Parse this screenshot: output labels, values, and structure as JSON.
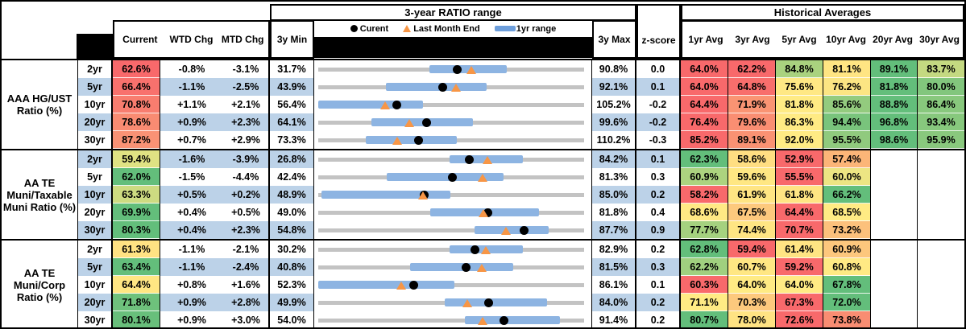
{
  "header": {
    "chart_title": "3-year RATIO range",
    "hist_title": "Historical Averages",
    "col_current": "Current",
    "col_wtd": "WTD Chg",
    "col_mtd": "MTD Chg",
    "col_min": "3y Min",
    "col_max": "3y Max",
    "col_z": "z-score",
    "avg_cols": [
      "1yr Avg",
      "3yr Avg",
      "5yr Avg",
      "10yr Avg",
      "20yr Avg",
      "30yr Avg"
    ],
    "legend": [
      {
        "marker": "dot",
        "label": "Curent"
      },
      {
        "marker": "triangle",
        "label": "Last Month End"
      },
      {
        "marker": "bar",
        "label": "1yr range"
      }
    ]
  },
  "colors": {
    "stripe_blue": "#BCD2E8",
    "bar_blue": "#8DB4E2",
    "legend_bar_blue": "#6D9EDB",
    "track_gray": "#C3C3C3",
    "triangle_orange": "#F79646",
    "dot_black": "#000000",
    "scale_red": "#F8696B",
    "scale_yellow": "#FFEB84",
    "scale_green": "#63BE7B"
  },
  "groups": [
    {
      "label": "AAA HG/UST Ratio (%)",
      "rows": [
        {
          "term": "2yr",
          "current": {
            "v": "62.6%",
            "c": "#F8696B"
          },
          "wtd": "-0.8%",
          "mtd": "-3.1%",
          "min": "31.7%",
          "max": "90.8%",
          "z": "0.0",
          "avgs": [
            {
              "v": "64.0%",
              "c": "#F8696B"
            },
            {
              "v": "62.2%",
              "c": "#F8696B"
            },
            {
              "v": "84.8%",
              "c": "#A9D27F"
            },
            {
              "v": "81.1%",
              "c": "#FFE583"
            },
            {
              "v": "89.1%",
              "c": "#63BE7B"
            },
            {
              "v": "83.7%",
              "c": "#C4D981"
            }
          ],
          "chart": {
            "min": 31.7,
            "max": 90.8,
            "lo": 56.4,
            "hi": 73.6,
            "dot": 62.6,
            "tri": 65.7
          }
        },
        {
          "term": "5yr",
          "current": {
            "v": "66.4%",
            "c": "#F8716D"
          },
          "wtd": "-1.1%",
          "mtd": "-2.5%",
          "min": "43.9%",
          "max": "92.1%",
          "z": "0.1",
          "avgs": [
            {
              "v": "64.0%",
              "c": "#F8696B"
            },
            {
              "v": "64.8%",
              "c": "#F86E6C"
            },
            {
              "v": "75.6%",
              "c": "#FFE884"
            },
            {
              "v": "76.2%",
              "c": "#FCE583"
            },
            {
              "v": "81.8%",
              "c": "#63BE7B"
            },
            {
              "v": "80.0%",
              "c": "#82C67D"
            }
          ],
          "chart": {
            "min": 43.9,
            "max": 92.1,
            "lo": 56.2,
            "hi": 74.4,
            "dot": 66.4,
            "tri": 68.9
          }
        },
        {
          "term": "10yr",
          "current": {
            "v": "70.8%",
            "c": "#F87D6F"
          },
          "wtd": "+1.1%",
          "mtd": "+2.1%",
          "min": "56.4%",
          "max": "105.2%",
          "z": "-0.2",
          "avgs": [
            {
              "v": "64.4%",
              "c": "#F8696B"
            },
            {
              "v": "71.9%",
              "c": "#FA9473"
            },
            {
              "v": "81.8%",
              "c": "#FFEB84"
            },
            {
              "v": "85.6%",
              "c": "#93CB7E"
            },
            {
              "v": "88.8%",
              "c": "#63BE7B"
            },
            {
              "v": "86.4%",
              "c": "#88C87D"
            }
          ],
          "chart": {
            "min": 56.4,
            "max": 105.2,
            "lo": 56.4,
            "hi": 75.6,
            "dot": 70.8,
            "tri": 68.7
          }
        },
        {
          "term": "20yr",
          "current": {
            "v": "78.6%",
            "c": "#F98B72"
          },
          "wtd": "+0.9%",
          "mtd": "+2.3%",
          "min": "64.1%",
          "max": "99.6%",
          "z": "-0.2",
          "avgs": [
            {
              "v": "76.4%",
              "c": "#F8696B"
            },
            {
              "v": "79.6%",
              "c": "#FA8E72"
            },
            {
              "v": "86.3%",
              "c": "#FFEB84"
            },
            {
              "v": "94.4%",
              "c": "#79C47C"
            },
            {
              "v": "96.8%",
              "c": "#63BE7B"
            },
            {
              "v": "93.4%",
              "c": "#87C87D"
            }
          ],
          "chart": {
            "min": 64.1,
            "max": 99.6,
            "lo": 71.2,
            "hi": 84.8,
            "dot": 78.6,
            "tri": 76.3
          }
        },
        {
          "term": "30yr",
          "current": {
            "v": "87.2%",
            "c": "#F99275"
          },
          "wtd": "+0.7%",
          "mtd": "+2.9%",
          "min": "73.3%",
          "max": "110.2%",
          "z": "-0.3",
          "avgs": [
            {
              "v": "85.2%",
              "c": "#F8696B"
            },
            {
              "v": "89.1%",
              "c": "#FA9273"
            },
            {
              "v": "92.0%",
              "c": "#FFEB84"
            },
            {
              "v": "95.5%",
              "c": "#90CA7E"
            },
            {
              "v": "98.6%",
              "c": "#63BE7B"
            },
            {
              "v": "95.9%",
              "c": "#89C87D"
            }
          ],
          "chart": {
            "min": 73.3,
            "max": 110.2,
            "lo": 79.9,
            "hi": 92.5,
            "dot": 87.2,
            "tri": 84.3
          }
        }
      ]
    },
    {
      "label": "AA TE Muni/Taxable Muni Ratio (%)",
      "rows": [
        {
          "term": "2yr",
          "current": {
            "v": "59.4%",
            "c": "#E0E283"
          },
          "wtd": "-1.6%",
          "mtd": "-3.9%",
          "min": "26.8%",
          "max": "84.2%",
          "z": "0.1",
          "avgs": [
            {
              "v": "62.3%",
              "c": "#63BE7B"
            },
            {
              "v": "58.6%",
              "c": "#FFDE82"
            },
            {
              "v": "52.9%",
              "c": "#F8696B"
            },
            {
              "v": "57.4%",
              "c": "#FCB578"
            },
            null,
            null
          ],
          "chart": {
            "min": 26.8,
            "max": 84.2,
            "lo": 55.2,
            "hi": 70.9,
            "dot": 59.4,
            "tri": 63.3
          }
        },
        {
          "term": "5yr",
          "current": {
            "v": "62.0%",
            "c": "#63BE7B"
          },
          "wtd": "-1.5%",
          "mtd": "-4.4%",
          "min": "42.4%",
          "max": "81.3%",
          "z": "0.3",
          "avgs": [
            {
              "v": "60.9%",
              "c": "#ACD37F"
            },
            {
              "v": "59.6%",
              "c": "#FFE783"
            },
            {
              "v": "55.5%",
              "c": "#F8696B"
            },
            {
              "v": "60.0%",
              "c": "#EDE583"
            },
            null,
            null
          ],
          "chart": {
            "min": 42.4,
            "max": 81.3,
            "lo": 52.4,
            "hi": 69.5,
            "dot": 62.0,
            "tri": 66.4
          }
        },
        {
          "term": "10yr",
          "current": {
            "v": "63.3%",
            "c": "#CDDB81"
          },
          "wtd": "+0.5%",
          "mtd": "+0.2%",
          "min": "48.9%",
          "max": "85.0%",
          "z": "0.2",
          "avgs": [
            {
              "v": "58.2%",
              "c": "#F8696B"
            },
            {
              "v": "61.9%",
              "c": "#FFE583"
            },
            {
              "v": "61.8%",
              "c": "#FFE583"
            },
            {
              "v": "66.2%",
              "c": "#63BE7B"
            },
            null,
            null
          ],
          "chart": {
            "min": 48.9,
            "max": 85.0,
            "lo": 49.3,
            "hi": 66.8,
            "dot": 63.3,
            "tri": 63.1
          }
        },
        {
          "term": "20yr",
          "current": {
            "v": "69.9%",
            "c": "#63BE7B"
          },
          "wtd": "+0.4%",
          "mtd": "+0.5%",
          "min": "49.0%",
          "max": "81.8%",
          "z": "0.4",
          "avgs": [
            {
              "v": "68.6%",
              "c": "#FFE984"
            },
            {
              "v": "67.5%",
              "c": "#FDC97D"
            },
            {
              "v": "64.4%",
              "c": "#F8696B"
            },
            {
              "v": "68.5%",
              "c": "#FFEB84"
            },
            null,
            null
          ],
          "chart": {
            "min": 49.0,
            "max": 81.8,
            "lo": 62.8,
            "hi": 76.2,
            "dot": 69.9,
            "tri": 69.4
          }
        },
        {
          "term": "30yr",
          "current": {
            "v": "80.3%",
            "c": "#63BE7B"
          },
          "wtd": "+0.4%",
          "mtd": "+2.3%",
          "min": "54.8%",
          "max": "87.7%",
          "z": "0.9",
          "avgs": [
            {
              "v": "77.7%",
              "c": "#A5D17F"
            },
            {
              "v": "74.4%",
              "c": "#FFE583"
            },
            {
              "v": "70.7%",
              "c": "#F8696B"
            },
            {
              "v": "73.2%",
              "c": "#FCC17C"
            },
            null,
            null
          ],
          "chart": {
            "min": 54.8,
            "max": 87.7,
            "lo": 74.1,
            "hi": 83.3,
            "dot": 80.3,
            "tri": 78.0
          }
        }
      ]
    },
    {
      "label": "AA TE Muni/Corp Ratio (%)",
      "rows": [
        {
          "term": "2yr",
          "current": {
            "v": "61.3%",
            "c": "#FFE283"
          },
          "wtd": "-1.1%",
          "mtd": "-2.1%",
          "min": "30.2%",
          "max": "82.9%",
          "z": "0.2",
          "avgs": [
            {
              "v": "62.8%",
              "c": "#63BE7B"
            },
            {
              "v": "59.4%",
              "c": "#F8696B"
            },
            {
              "v": "61.4%",
              "c": "#FFE483"
            },
            {
              "v": "60.9%",
              "c": "#FDC77D"
            },
            null,
            null
          ],
          "chart": {
            "min": 30.2,
            "max": 82.9,
            "lo": 56.2,
            "hi": 70.7,
            "dot": 61.3,
            "tri": 63.4
          }
        },
        {
          "term": "5yr",
          "current": {
            "v": "63.4%",
            "c": "#63BE7B"
          },
          "wtd": "-1.1%",
          "mtd": "-2.4%",
          "min": "40.8%",
          "max": "81.5%",
          "z": "0.3",
          "avgs": [
            {
              "v": "62.2%",
              "c": "#A0D07F"
            },
            {
              "v": "60.7%",
              "c": "#FFE783"
            },
            {
              "v": "59.2%",
              "c": "#F8696B"
            },
            {
              "v": "60.8%",
              "c": "#FFEA84"
            },
            null,
            null
          ],
          "chart": {
            "min": 40.8,
            "max": 81.5,
            "lo": 54.8,
            "hi": 70.6,
            "dot": 63.4,
            "tri": 65.8
          }
        },
        {
          "term": "10yr",
          "current": {
            "v": "64.4%",
            "c": "#FFE683"
          },
          "wtd": "+0.8%",
          "mtd": "+1.6%",
          "min": "52.3%",
          "max": "86.1%",
          "z": "0.1",
          "avgs": [
            {
              "v": "60.3%",
              "c": "#F8696B"
            },
            {
              "v": "64.0%",
              "c": "#FFEB84"
            },
            {
              "v": "64.0%",
              "c": "#FFEB84"
            },
            {
              "v": "67.8%",
              "c": "#63BE7B"
            },
            null,
            null
          ],
          "chart": {
            "min": 52.3,
            "max": 86.1,
            "lo": 52.3,
            "hi": 69.6,
            "dot": 64.4,
            "tri": 62.8
          }
        },
        {
          "term": "20yr",
          "current": {
            "v": "71.8%",
            "c": "#6EC17C"
          },
          "wtd": "+0.9%",
          "mtd": "+2.8%",
          "min": "49.9%",
          "max": "84.0%",
          "z": "0.2",
          "avgs": [
            {
              "v": "71.1%",
              "c": "#FFEB84"
            },
            {
              "v": "70.3%",
              "c": "#FDC97D"
            },
            {
              "v": "67.3%",
              "c": "#F8696B"
            },
            {
              "v": "72.0%",
              "c": "#63BE7B"
            },
            null,
            null
          ],
          "chart": {
            "min": 49.9,
            "max": 84.0,
            "lo": 66.1,
            "hi": 79.2,
            "dot": 71.8,
            "tri": 69.0
          }
        },
        {
          "term": "30yr",
          "current": {
            "v": "80.1%",
            "c": "#68BF7B"
          },
          "wtd": "+0.9%",
          "mtd": "+3.0%",
          "min": "54.0%",
          "max": "91.4%",
          "z": "0.2",
          "avgs": [
            {
              "v": "80.7%",
              "c": "#63BE7B"
            },
            {
              "v": "78.0%",
              "c": "#FFE383"
            },
            {
              "v": "72.6%",
              "c": "#F8696B"
            },
            {
              "v": "73.8%",
              "c": "#F98D72"
            },
            null,
            null
          ],
          "chart": {
            "min": 54.0,
            "max": 91.4,
            "lo": 74.6,
            "hi": 88.0,
            "dot": 80.1,
            "tri": 77.1
          }
        }
      ]
    }
  ],
  "chart_data": {
    "type": "range-bullet",
    "title": "3-year RATIO range",
    "legend": [
      "Curent",
      "Last Month End",
      "1yr range"
    ],
    "note": "Each row: gray track spans 3y Min to 3y Max; blue bar = 1yr range; black dot = current; orange triangle = last month end",
    "groups": [
      {
        "name": "AAA HG/UST Ratio (%)",
        "terms": [
          "2yr",
          "5yr",
          "10yr",
          "20yr",
          "30yr"
        ],
        "min3y": [
          31.7,
          43.9,
          56.4,
          64.1,
          73.3
        ],
        "max3y": [
          90.8,
          92.1,
          105.2,
          99.6,
          110.2
        ],
        "current": [
          62.6,
          66.4,
          70.8,
          78.6,
          87.2
        ],
        "last_month_end": [
          65.7,
          68.9,
          68.7,
          76.3,
          84.3
        ],
        "range1yr_lo": [
          56.4,
          56.2,
          56.4,
          71.2,
          79.9
        ],
        "range1yr_hi": [
          73.6,
          74.4,
          75.6,
          84.8,
          92.5
        ]
      },
      {
        "name": "AA TE Muni/Taxable Muni Ratio (%)",
        "terms": [
          "2yr",
          "5yr",
          "10yr",
          "20yr",
          "30yr"
        ],
        "min3y": [
          26.8,
          42.4,
          48.9,
          49.0,
          54.8
        ],
        "max3y": [
          84.2,
          81.3,
          85.0,
          81.8,
          87.7
        ],
        "current": [
          59.4,
          62.0,
          63.3,
          69.9,
          80.3
        ],
        "last_month_end": [
          63.3,
          66.4,
          63.1,
          69.4,
          78.0
        ],
        "range1yr_lo": [
          55.2,
          52.4,
          49.3,
          62.8,
          74.1
        ],
        "range1yr_hi": [
          70.9,
          69.5,
          66.8,
          76.2,
          83.3
        ]
      },
      {
        "name": "AA TE Muni/Corp Ratio (%)",
        "terms": [
          "2yr",
          "5yr",
          "10yr",
          "20yr",
          "30yr"
        ],
        "min3y": [
          30.2,
          40.8,
          52.3,
          49.9,
          54.0
        ],
        "max3y": [
          82.9,
          81.5,
          86.1,
          84.0,
          91.4
        ],
        "current": [
          61.3,
          63.4,
          64.4,
          71.8,
          80.1
        ],
        "last_month_end": [
          63.4,
          65.8,
          62.8,
          69.0,
          77.1
        ],
        "range1yr_lo": [
          56.2,
          54.8,
          52.3,
          66.1,
          74.6
        ],
        "range1yr_hi": [
          70.7,
          70.6,
          69.6,
          79.2,
          88.0
        ]
      }
    ]
  }
}
